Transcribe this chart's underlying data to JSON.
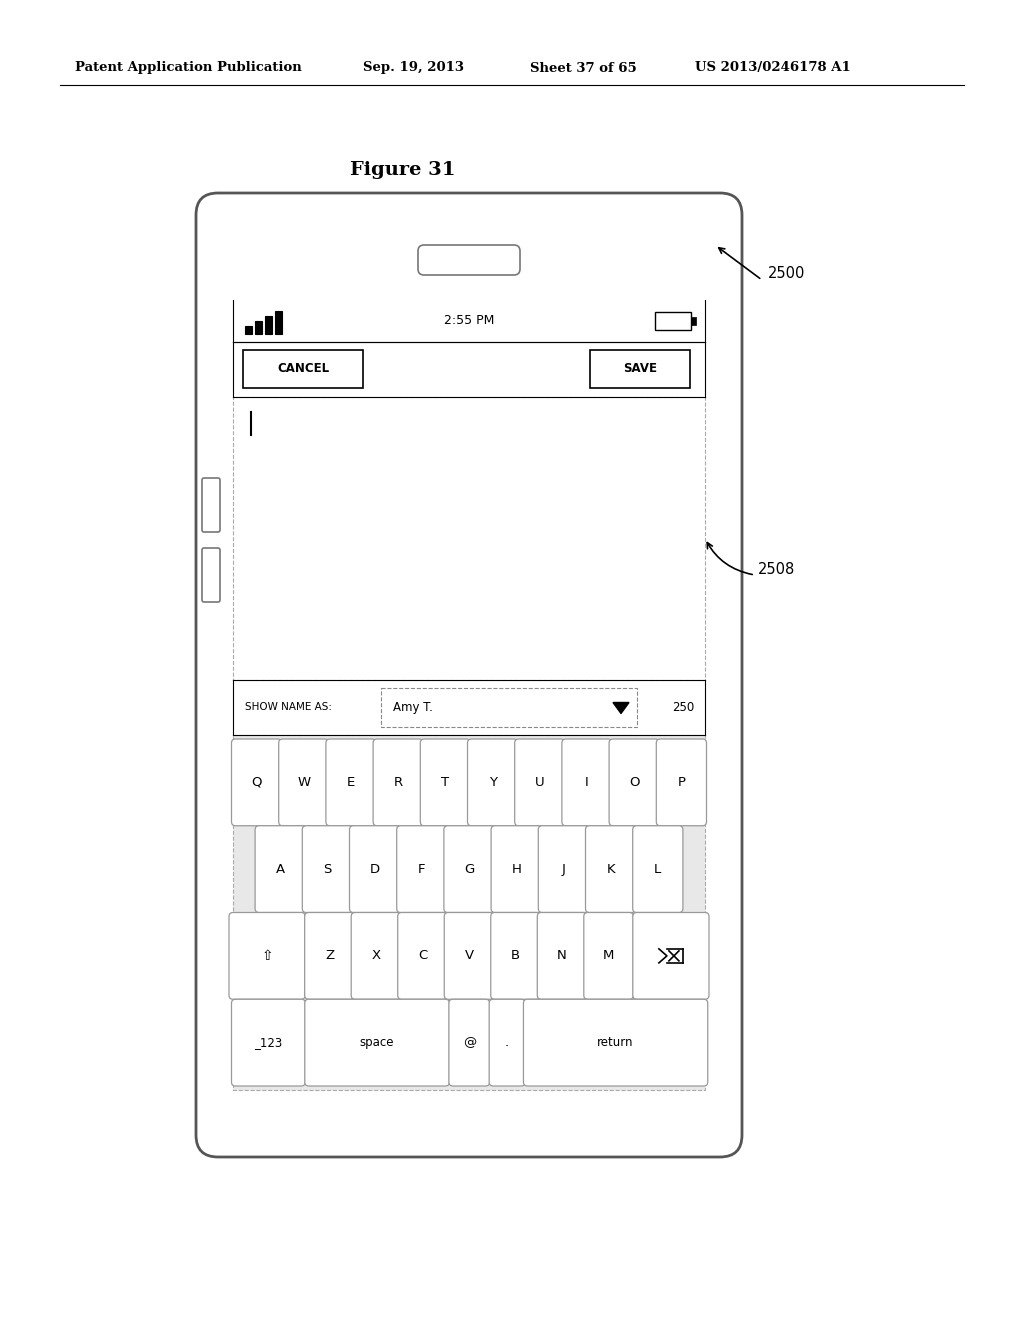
{
  "bg_color": "#ffffff",
  "header_text": "Patent Application Publication",
  "header_date": "Sep. 19, 2013",
  "header_sheet": "Sheet 37 of 65",
  "header_patent": "US 2013/0246178 A1",
  "figure_title": "Figure 31",
  "label_2500": "2500",
  "label_2508": "2508",
  "label_250": "250",
  "status_time": "2:55 PM",
  "cancel_text": "CANCEL",
  "save_text": "SAVE",
  "show_name_label": "SHOW NAME AS:",
  "show_name_value": "Amy T.",
  "row1_keys": [
    "Q",
    "W",
    "E",
    "R",
    "T",
    "Y",
    "U",
    "I",
    "O",
    "P"
  ],
  "row2_keys": [
    "A",
    "S",
    "D",
    "F",
    "G",
    "H",
    "J",
    "K",
    "L"
  ],
  "row3_keys": [
    "⇧",
    "Z",
    "X",
    "C",
    "V",
    "B",
    "N",
    "M",
    "⌫"
  ],
  "row4_keys": [
    "_123",
    "space",
    "@",
    ".",
    "return"
  ]
}
